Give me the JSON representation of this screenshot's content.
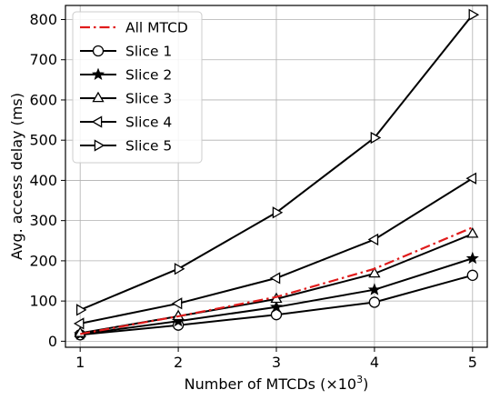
{
  "chart_data": {
    "type": "line",
    "title": "",
    "xlabel": "Number of MTCDs (×10",
    "xlabel_sup": "3",
    "xlabel_tail": ")",
    "ylabel": "Avg. access delay (ms)",
    "x": [
      1,
      2,
      3,
      4,
      5
    ],
    "xlim": [
      0.85,
      5.15
    ],
    "ylim": [
      -15,
      835
    ],
    "xticks": [
      1,
      2,
      3,
      4,
      5
    ],
    "yticks": [
      0,
      100,
      200,
      300,
      400,
      500,
      600,
      700,
      800
    ],
    "grid": true,
    "legend_position": "top-left",
    "series": [
      {
        "name": "All MTCD",
        "values": [
          18,
          62,
          110,
          180,
          283
        ],
        "color": "#e01b1b",
        "style": "dash-dot",
        "marker": "none"
      },
      {
        "name": "Slice 1",
        "values": [
          16,
          40,
          66,
          97,
          164
        ],
        "color": "#000000",
        "style": "solid",
        "marker": "circle"
      },
      {
        "name": "Slice 2",
        "values": [
          17,
          50,
          85,
          128,
          206
        ],
        "color": "#000000",
        "style": "solid",
        "marker": "star"
      },
      {
        "name": "Slice 3",
        "values": [
          20,
          62,
          105,
          168,
          267
        ],
        "color": "#000000",
        "style": "solid",
        "marker": "triangle-up"
      },
      {
        "name": "Slice 4",
        "values": [
          44,
          94,
          157,
          253,
          405
        ],
        "color": "#000000",
        "style": "solid",
        "marker": "triangle-left"
      },
      {
        "name": "Slice 5",
        "values": [
          78,
          180,
          320,
          506,
          812
        ],
        "color": "#000000",
        "style": "solid",
        "marker": "triangle-right"
      }
    ]
  }
}
